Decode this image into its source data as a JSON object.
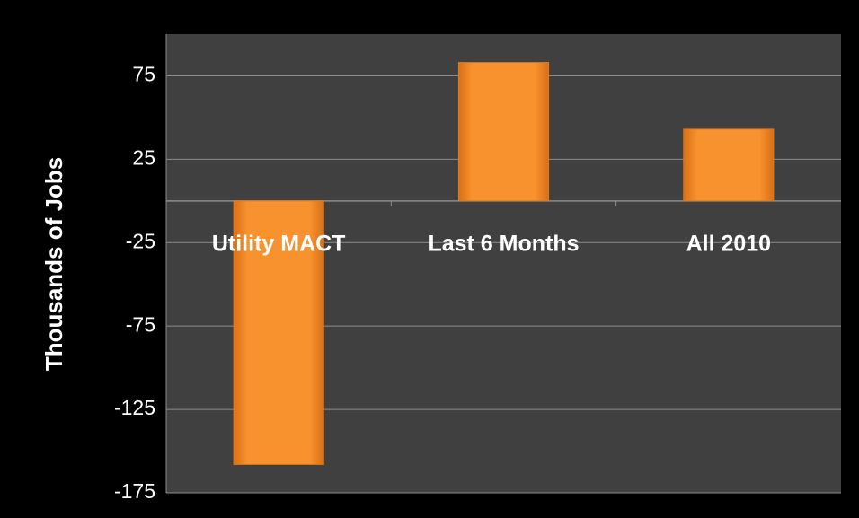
{
  "chart_data": {
    "type": "bar",
    "y_label": "Thousands of Jobs",
    "categories": [
      "Utility MACT",
      "Last 6 Months",
      "All 2010"
    ],
    "values": [
      -158,
      83,
      43
    ],
    "color": "#f7922e",
    "ylim": [
      -175,
      100
    ],
    "yticks": [
      -175,
      -125,
      -75,
      -25,
      25,
      75
    ],
    "grid": true
  }
}
